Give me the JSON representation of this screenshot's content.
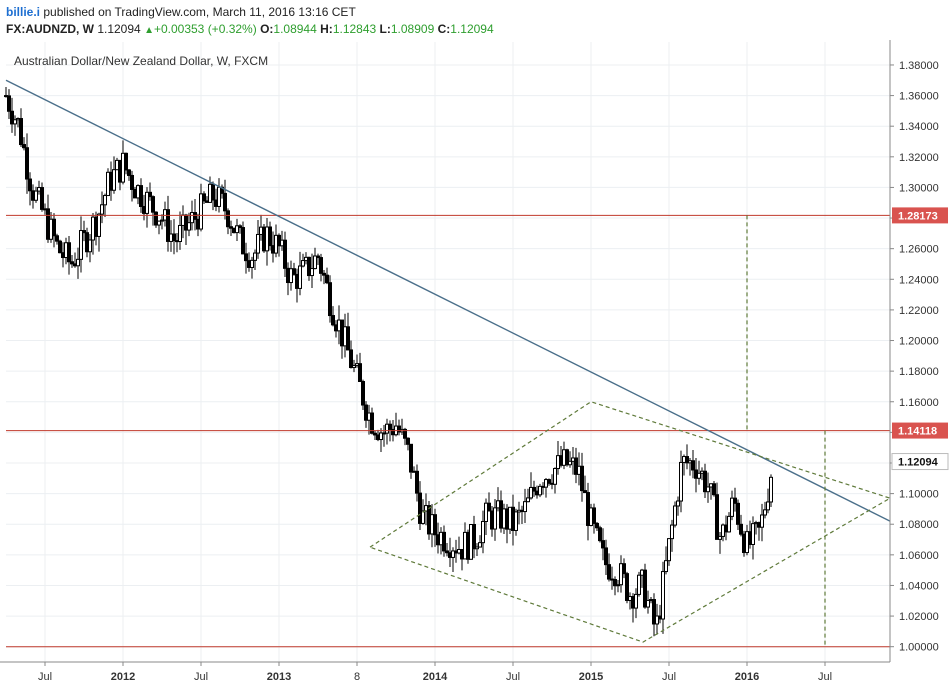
{
  "header": {
    "author": "billie.i",
    "published_text": "published on TradingView.com, March 11, 2016 13:16 CET",
    "symbol": "FX:AUDNZD, W",
    "last": "1.12094",
    "change": "+0.00353 (+0.32%)",
    "o_label": "O:",
    "o_value": "1.08944",
    "h_label": "H:",
    "h_value": "1.12843",
    "l_label": "L:",
    "l_value": "1.08909",
    "c_label": "C:",
    "c_value": "1.12094"
  },
  "colors": {
    "trendline": "#4a6f8a",
    "level_line": "#c0392b",
    "level_badge": "#d9534f",
    "current_badge_bg": "#ffffff",
    "pattern": "#5f7a3a",
    "candle": "#000000",
    "grid": "#eceff2"
  },
  "chart_data": {
    "type": "candlestick",
    "title": "Australian Dollar/New Zealand Dollar, W, FXCM",
    "x_range": [
      "2011-04",
      "2016-12"
    ],
    "ylim": [
      0.99,
      1.395
    ],
    "y_ticks": [
      "1.38000",
      "1.36000",
      "1.34000",
      "1.32000",
      "1.30000",
      "1.28000",
      "1.26000",
      "1.24000",
      "1.22000",
      "1.20000",
      "1.18000",
      "1.16000",
      "1.14000",
      "1.12000",
      "1.10000",
      "1.08000",
      "1.06000",
      "1.04000",
      "1.02000",
      "1.00000"
    ],
    "x_ticks": [
      {
        "label": "Jul",
        "date": "2011-07"
      },
      {
        "label": "2012",
        "date": "2012-01"
      },
      {
        "label": "Jul",
        "date": "2012-07"
      },
      {
        "label": "2013",
        "date": "2013-01"
      },
      {
        "label": "8",
        "date": "2013-07"
      },
      {
        "label": "2014",
        "date": "2014-01"
      },
      {
        "label": "Jul",
        "date": "2014-07"
      },
      {
        "label": "2015",
        "date": "2015-01"
      },
      {
        "label": "Jul",
        "date": "2015-07"
      },
      {
        "label": "2016",
        "date": "2016-01"
      },
      {
        "label": "Jul",
        "date": "2016-07"
      }
    ],
    "price_path": [
      [
        "2011-04",
        1.36
      ],
      [
        "2011-05",
        1.34
      ],
      [
        "2011-06",
        1.3
      ],
      [
        "2011-07",
        1.28
      ],
      [
        "2011-08",
        1.26
      ],
      [
        "2011-09",
        1.25
      ],
      [
        "2011-10",
        1.265
      ],
      [
        "2011-11",
        1.28
      ],
      [
        "2011-12",
        1.305
      ],
      [
        "2012-01",
        1.315
      ],
      [
        "2012-02",
        1.3
      ],
      [
        "2012-03",
        1.29
      ],
      [
        "2012-04",
        1.28
      ],
      [
        "2012-05",
        1.265
      ],
      [
        "2012-06",
        1.275
      ],
      [
        "2012-07",
        1.285
      ],
      [
        "2012-08",
        1.295
      ],
      [
        "2012-09",
        1.285
      ],
      [
        "2012-10",
        1.265
      ],
      [
        "2012-11",
        1.255
      ],
      [
        "2012-12",
        1.27
      ],
      [
        "2013-01",
        1.26
      ],
      [
        "2013-02",
        1.24
      ],
      [
        "2013-03",
        1.245
      ],
      [
        "2013-04",
        1.255
      ],
      [
        "2013-05",
        1.225
      ],
      [
        "2013-06",
        1.2
      ],
      [
        "2013-07",
        1.175
      ],
      [
        "2013-08",
        1.15
      ],
      [
        "2013-09",
        1.14
      ],
      [
        "2013-10",
        1.145
      ],
      [
        "2013-11",
        1.125
      ],
      [
        "2013-12",
        1.085
      ],
      [
        "2014-01",
        1.075
      ],
      [
        "2014-02",
        1.07
      ],
      [
        "2014-03",
        1.065
      ],
      [
        "2014-04",
        1.07
      ],
      [
        "2014-05",
        1.085
      ],
      [
        "2014-06",
        1.085
      ],
      [
        "2014-07",
        1.08
      ],
      [
        "2014-08",
        1.09
      ],
      [
        "2014-09",
        1.11
      ],
      [
        "2014-10",
        1.115
      ],
      [
        "2014-11",
        1.12
      ],
      [
        "2014-12",
        1.115
      ],
      [
        "2015-01",
        1.08
      ],
      [
        "2015-02",
        1.055
      ],
      [
        "2015-03",
        1.05
      ],
      [
        "2015-04",
        1.035
      ],
      [
        "2015-05",
        1.04
      ],
      [
        "2015-06",
        1.01
      ],
      [
        "2015-07",
        1.065
      ],
      [
        "2015-08",
        1.12
      ],
      [
        "2015-09",
        1.12
      ],
      [
        "2015-10",
        1.105
      ],
      [
        "2015-11",
        1.07
      ],
      [
        "2015-12",
        1.095
      ],
      [
        "2016-01",
        1.065
      ],
      [
        "2016-02",
        1.075
      ],
      [
        "2016-03",
        1.121
      ]
    ],
    "horizontal_levels": [
      {
        "value": 1.28173,
        "label": "1.28173"
      },
      {
        "value": 1.14118,
        "label": "1.14118"
      },
      {
        "value": 1.0,
        "label": ""
      }
    ],
    "current_price": {
      "value": 1.12094,
      "label": "1.12094"
    },
    "trendline": [
      [
        "2011-04",
        1.37
      ],
      [
        "2016-12",
        1.082
      ]
    ],
    "diamond": [
      [
        "2013-08",
        1.065
      ],
      [
        "2015-01",
        1.16
      ],
      [
        "2016-12",
        1.097
      ],
      [
        "2015-05",
        1.003
      ]
    ],
    "vertical_projections": [
      {
        "date": "2016-01",
        "from": 1.14118,
        "to": 1.28173
      },
      {
        "date": "2016-07",
        "from": 1.0,
        "to": 1.14118
      }
    ]
  }
}
